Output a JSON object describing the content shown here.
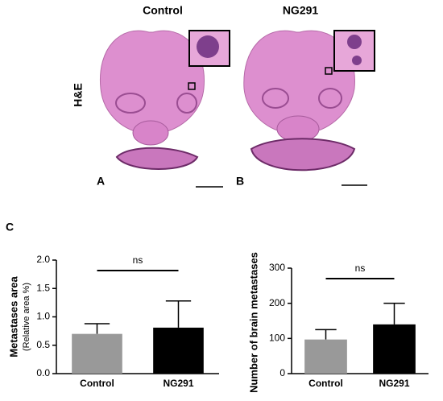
{
  "figure": {
    "col_labels": [
      "Control",
      "NG291"
    ],
    "row_label": "H&E",
    "panel_labels": [
      "A",
      "B",
      "C"
    ]
  },
  "chart_data": [
    {
      "type": "bar",
      "ylabel": "Metastases area",
      "ylabel_sub": "(Relative area %)",
      "categories": [
        "Control",
        "NG291"
      ],
      "values": [
        0.7,
        0.81
      ],
      "errors": [
        0.18,
        0.47
      ],
      "colors": [
        "#999999",
        "#000000"
      ],
      "annotation": "ns",
      "ylim": [
        0,
        2
      ],
      "yticks": [
        {
          "value": 0,
          "label": "0.0"
        },
        {
          "value": 0.5,
          "label": "0.5"
        },
        {
          "value": 1,
          "label": "1.0"
        },
        {
          "value": 1.5,
          "label": "1.5"
        },
        {
          "value": 2,
          "label": "2.0"
        }
      ]
    },
    {
      "type": "bar",
      "ylabel": "Number of brain metastases",
      "categories": [
        "Control",
        "NG291"
      ],
      "values": [
        97,
        140
      ],
      "errors": [
        28,
        60
      ],
      "colors": [
        "#999999",
        "#000000"
      ],
      "annotation": "ns",
      "ylim": [
        0,
        300
      ],
      "yticks": [
        0,
        100,
        200,
        300
      ]
    }
  ]
}
